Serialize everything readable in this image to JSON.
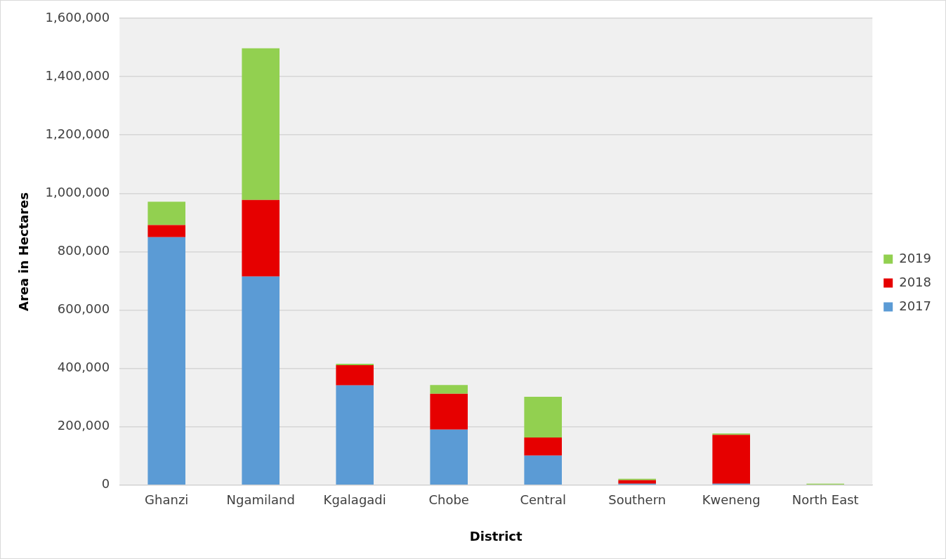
{
  "chart_data": {
    "type": "bar",
    "stacked": true,
    "xlabel": "District",
    "ylabel": "Area in Hectares",
    "categories": [
      "Ghanzi",
      "Ngamiland",
      "Kgalagadi",
      "Chobe",
      "Central",
      "Southern",
      "Kweneng",
      "North East"
    ],
    "series": [
      {
        "name": "2017",
        "color": "#5b9bd5",
        "values": [
          850000,
          715000,
          342000,
          190000,
          101000,
          5000,
          5000,
          0
        ]
      },
      {
        "name": "2018",
        "color": "#e60000",
        "values": [
          41000,
          262000,
          69000,
          123000,
          62000,
          12000,
          167000,
          0
        ]
      },
      {
        "name": "2019",
        "color": "#92d050",
        "values": [
          80000,
          520000,
          5000,
          30000,
          140000,
          5000,
          5000,
          5000
        ]
      }
    ],
    "ylim": [
      0,
      1600000
    ],
    "yticks": [
      0,
      {
        "value": 200000,
        "label": "200,000"
      },
      {
        "value": 400000,
        "label": "400,000"
      },
      {
        "value": 600000,
        "label": "600,000"
      },
      {
        "value": 800000,
        "label": "800,000"
      },
      {
        "value": 1000000,
        "label": "1,000,000"
      },
      {
        "value": 1200000,
        "label": "1,200,000"
      },
      {
        "value": 1400000,
        "label": "1,400,000"
      },
      {
        "value": 1600000,
        "label": "1,600,000"
      }
    ],
    "grid": "y",
    "legend": "right"
  }
}
